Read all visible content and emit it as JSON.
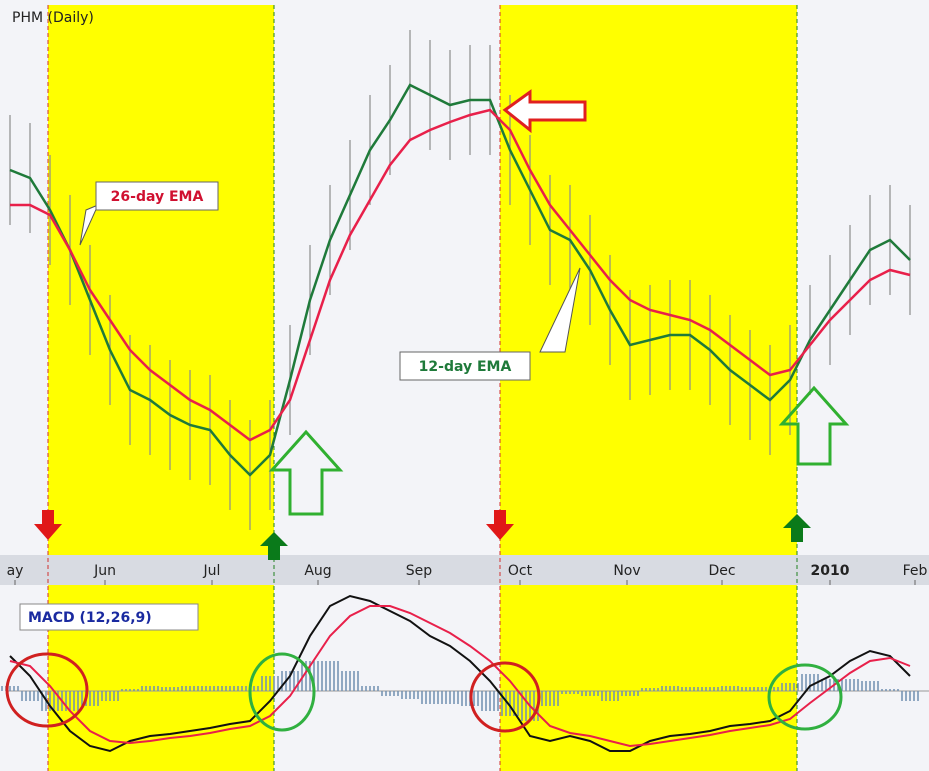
{
  "chart_data": [
    {
      "type": "line",
      "title": "PHM (Daily)",
      "x": [
        0,
        1,
        2,
        3,
        4,
        5,
        6,
        7,
        8,
        9,
        10,
        11,
        12,
        13,
        14,
        15,
        16,
        17,
        18,
        19,
        20,
        21,
        22,
        23,
        24,
        25,
        26,
        27,
        28,
        29,
        30,
        31,
        32,
        33,
        34,
        35,
        36,
        37,
        38,
        39,
        40,
        41,
        42,
        43,
        44,
        45
      ],
      "xlim": [
        -0.1,
        45.95
      ],
      "xticks": [
        {
          "value": 0.25,
          "label": "ay"
        },
        {
          "value": 4.75,
          "label": "Jun"
        },
        {
          "value": 10.1,
          "label": "Jul"
        },
        {
          "value": 15.4,
          "label": "Aug"
        },
        {
          "value": 20.45,
          "label": "Sep"
        },
        {
          "value": 25.5,
          "label": "Oct"
        },
        {
          "value": 30.85,
          "label": "Nov"
        },
        {
          "value": 35.6,
          "label": "Dec"
        },
        {
          "value": 41,
          "label": "2010"
        },
        {
          "value": 45.25,
          "label": "Feb"
        }
      ],
      "ylim": [
        0,
        550
      ],
      "bar_color": "#8c8c8c",
      "high": [
        440,
        432,
        400,
        360,
        310,
        260,
        220,
        210,
        195,
        185,
        180,
        155,
        135,
        155,
        230,
        310,
        370,
        415,
        460,
        490,
        525,
        515,
        505,
        510,
        510,
        460,
        420,
        380,
        370,
        340,
        300,
        265,
        270,
        275,
        275,
        260,
        240,
        225,
        210,
        230,
        270,
        300,
        330,
        360,
        370,
        350
      ],
      "low": [
        330,
        322,
        290,
        250,
        200,
        150,
        110,
        100,
        85,
        75,
        70,
        45,
        25,
        45,
        120,
        200,
        260,
        305,
        350,
        380,
        415,
        405,
        395,
        400,
        400,
        350,
        310,
        270,
        260,
        230,
        190,
        155,
        160,
        165,
        165,
        150,
        130,
        115,
        100,
        120,
        160,
        190,
        220,
        250,
        260,
        240
      ],
      "series": [
        {
          "name": "12-day EMA",
          "color": "#1f7a3a",
          "values": [
            385,
            377,
            345,
            305,
            255,
            205,
            165,
            155,
            140,
            130,
            125,
            100,
            80,
            100,
            175,
            255,
            315,
            360,
            405,
            435,
            470,
            460,
            450,
            455,
            455,
            405,
            365,
            325,
            315,
            285,
            245,
            210,
            215,
            220,
            220,
            205,
            185,
            170,
            155,
            175,
            215,
            245,
            275,
            305,
            315,
            295
          ]
        },
        {
          "name": "26-day EMA",
          "color": "#e8204a",
          "values": [
            350,
            350,
            340,
            305,
            265,
            235,
            205,
            185,
            170,
            155,
            145,
            130,
            115,
            125,
            155,
            215,
            275,
            320,
            355,
            390,
            415,
            425,
            433,
            440,
            445,
            425,
            385,
            350,
            325,
            300,
            275,
            255,
            245,
            240,
            235,
            225,
            210,
            195,
            180,
            185,
            210,
            235,
            255,
            275,
            285,
            280
          ]
        }
      ]
    },
    {
      "type": "line",
      "title": "MACD (12,26,9)",
      "x": [
        0,
        1,
        2,
        3,
        4,
        5,
        6,
        7,
        8,
        9,
        10,
        11,
        12,
        13,
        14,
        15,
        16,
        17,
        18,
        19,
        20,
        21,
        22,
        23,
        24,
        25,
        26,
        27,
        28,
        29,
        30,
        31,
        32,
        33,
        34,
        35,
        36,
        37,
        38,
        39,
        40,
        41,
        42,
        43,
        44,
        45
      ],
      "xlim": [
        -0.1,
        45.95
      ],
      "ylim": [
        -80,
        110
      ],
      "histogram": {
        "color": "#6f8fb0",
        "values": [
          5,
          -10,
          -20,
          -20,
          -15,
          -10,
          2,
          5,
          4,
          5,
          5,
          5,
          5,
          15,
          20,
          30,
          30,
          20,
          5,
          -5,
          -8,
          -13,
          -13,
          -15,
          -20,
          -25,
          -30,
          -15,
          -3,
          -5,
          -10,
          -5,
          3,
          5,
          4,
          4,
          5,
          4,
          4,
          8,
          17,
          12,
          12,
          10,
          2,
          -10
        ]
      },
      "series": [
        {
          "color": "#111111",
          "values": [
            35,
            15,
            -15,
            -40,
            -55,
            -60,
            -50,
            -45,
            -43,
            -40,
            -37,
            -33,
            -30,
            -10,
            15,
            55,
            85,
            95,
            90,
            80,
            70,
            55,
            45,
            30,
            10,
            -15,
            -45,
            -50,
            -45,
            -50,
            -60,
            -60,
            -50,
            -45,
            -43,
            -40,
            -35,
            -33,
            -30,
            -20,
            5,
            15,
            30,
            40,
            35,
            15
          ]
        },
        {
          "color": "#e8204a",
          "values": [
            30,
            25,
            5,
            -20,
            -40,
            -50,
            -52,
            -50,
            -47,
            -45,
            -42,
            -38,
            -35,
            -25,
            -5,
            25,
            55,
            75,
            85,
            85,
            78,
            68,
            58,
            45,
            30,
            10,
            -15,
            -35,
            -42,
            -45,
            -50,
            -55,
            -53,
            -50,
            -47,
            -44,
            -40,
            -37,
            -34,
            -28,
            -12,
            3,
            18,
            30,
            33,
            25
          ]
        }
      ]
    }
  ]
}
